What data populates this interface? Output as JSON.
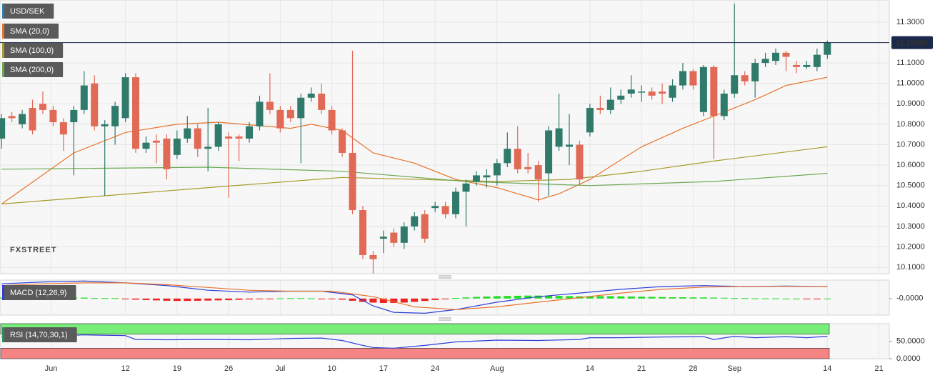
{
  "chart_data": [
    {
      "type": "candlestick",
      "title": "USD/SEK",
      "watermark": "FXSTREET",
      "ylim": [
        10.069,
        11.408
      ],
      "yticks": [
        {
          "value": 10.1,
          "label": "10.1000"
        },
        {
          "value": 10.2,
          "label": "10.2000"
        },
        {
          "value": 10.3,
          "label": "10.3000"
        },
        {
          "value": 10.4,
          "label": "10.4000"
        },
        {
          "value": 10.5,
          "label": "10.5000"
        },
        {
          "value": 10.6,
          "label": "10.6000"
        },
        {
          "value": 10.7,
          "label": "10.7000"
        },
        {
          "value": 10.8,
          "label": "10.8000"
        },
        {
          "value": 10.9,
          "label": "10.9000"
        },
        {
          "value": 11.0,
          "label": "11.0000"
        },
        {
          "value": 11.1,
          "label": "11.1000"
        },
        {
          "value": 11.2,
          "label": "11.2000"
        },
        {
          "value": 11.3,
          "label": "11.3000"
        }
      ],
      "xlim": [
        -0.15,
        86
      ],
      "xticks": [
        {
          "value": 4.8,
          "label": "Jun"
        },
        {
          "value": 12,
          "label": "12"
        },
        {
          "value": 17,
          "label": "19"
        },
        {
          "value": 22,
          "label": "26"
        },
        {
          "value": 27,
          "label": "Jul"
        },
        {
          "value": 32,
          "label": "10"
        },
        {
          "value": 37,
          "label": "17"
        },
        {
          "value": 42,
          "label": "24"
        },
        {
          "value": 48,
          "label": "Aug"
        },
        {
          "value": 57,
          "label": "14"
        },
        {
          "value": 62,
          "label": "21"
        },
        {
          "value": 67,
          "label": "28"
        },
        {
          "value": 71,
          "label": "Sep"
        },
        {
          "value": 80,
          "label": "14"
        },
        {
          "value": 85,
          "label": "21"
        }
      ],
      "grid": true,
      "last_price": {
        "value": 11.19962,
        "label": "11.19962"
      },
      "up_color": "#2f7a6a",
      "down_color": "#e06a55",
      "candles": {
        "open": [
          10.73,
          10.84,
          10.8,
          10.88,
          10.9,
          10.87,
          10.81,
          10.81,
          10.87,
          11.0,
          10.79,
          10.79,
          10.83,
          11.03,
          10.68,
          10.72,
          10.73,
          10.65,
          10.73,
          10.78,
          10.68,
          10.69,
          10.74,
          10.74,
          10.73,
          10.79,
          10.91,
          10.87,
          10.87,
          10.83,
          10.93,
          10.95,
          10.87,
          10.77,
          10.66,
          10.38,
          10.16,
          10.24,
          10.27,
          10.22,
          10.3,
          10.36,
          10.39,
          10.4,
          10.36,
          10.47,
          10.52,
          10.54,
          10.55,
          10.61,
          10.68,
          10.59,
          10.6,
          10.56,
          10.69,
          10.69,
          10.7,
          10.76,
          10.88,
          10.87,
          10.92,
          10.95,
          10.96,
          10.96,
          10.96,
          10.93,
          10.99,
          11.06,
          10.86,
          11.08,
          10.84,
          10.95,
          11.04,
          11.01,
          11.1,
          11.11,
          11.15,
          11.09,
          11.08,
          11.08,
          11.14
        ],
        "high": [
          10.85,
          10.86,
          10.87,
          10.92,
          10.96,
          10.89,
          10.83,
          10.89,
          11.06,
          11.04,
          10.82,
          10.91,
          11.05,
          11.05,
          10.74,
          10.75,
          10.75,
          10.77,
          10.84,
          10.8,
          10.88,
          10.81,
          10.76,
          10.75,
          10.81,
          10.94,
          11.05,
          10.89,
          10.89,
          10.95,
          10.98,
          11.0,
          10.89,
          10.78,
          11.16,
          10.4,
          10.18,
          10.28,
          10.29,
          10.32,
          10.37,
          10.38,
          10.42,
          10.42,
          10.49,
          10.53,
          10.57,
          10.58,
          10.63,
          10.76,
          10.79,
          10.66,
          10.62,
          10.79,
          10.95,
          10.85,
          10.72,
          10.9,
          10.94,
          10.98,
          10.97,
          11.04,
          10.99,
          10.98,
          11.0,
          11.02,
          11.1,
          11.07,
          11.09,
          11.09,
          10.97,
          11.39,
          11.06,
          11.12,
          11.15,
          11.17,
          11.16,
          11.11,
          11.11,
          11.17,
          11.21
        ],
        "low": [
          10.68,
          10.81,
          10.78,
          10.75,
          10.85,
          10.79,
          10.67,
          10.55,
          10.85,
          10.77,
          10.45,
          10.7,
          10.81,
          10.66,
          10.66,
          10.61,
          10.53,
          10.63,
          10.71,
          10.64,
          10.57,
          10.67,
          10.44,
          10.62,
          10.71,
          10.77,
          10.85,
          10.76,
          10.81,
          10.61,
          10.91,
          10.85,
          10.75,
          10.64,
          10.36,
          10.14,
          10.07,
          10.17,
          10.2,
          10.19,
          10.28,
          10.22,
          10.37,
          10.34,
          10.34,
          10.3,
          10.5,
          10.49,
          10.5,
          10.59,
          10.56,
          10.56,
          10.42,
          10.45,
          10.67,
          10.6,
          10.5,
          10.74,
          10.85,
          10.85,
          10.9,
          10.93,
          10.91,
          10.92,
          10.9,
          10.91,
          10.97,
          10.97,
          10.84,
          10.63,
          10.82,
          10.93,
          10.99,
          10.93,
          11.08,
          11.09,
          11.06,
          11.05,
          11.07,
          11.06,
          11.12
        ],
        "close": [
          10.83,
          10.83,
          10.85,
          10.77,
          10.87,
          10.81,
          10.75,
          10.87,
          10.99,
          10.79,
          10.8,
          10.89,
          11.03,
          10.68,
          10.71,
          10.71,
          10.58,
          10.73,
          10.78,
          10.68,
          10.69,
          10.8,
          10.73,
          10.73,
          10.79,
          10.91,
          10.87,
          10.78,
          10.83,
          10.93,
          10.95,
          10.87,
          10.77,
          10.66,
          10.38,
          10.16,
          10.14,
          10.25,
          10.22,
          10.3,
          10.35,
          10.24,
          10.4,
          10.36,
          10.47,
          10.51,
          10.55,
          10.55,
          10.61,
          10.68,
          10.58,
          10.58,
          10.53,
          10.77,
          10.78,
          10.7,
          10.53,
          10.88,
          10.87,
          10.92,
          10.94,
          10.97,
          10.96,
          10.94,
          10.95,
          10.99,
          11.06,
          10.99,
          11.08,
          10.84,
          10.95,
          11.04,
          11.01,
          11.1,
          11.12,
          11.15,
          11.13,
          11.08,
          11.09,
          11.14,
          11.19962
        ]
      },
      "series": [
        {
          "name": "SMA (20,0)",
          "color": "#e8732a",
          "x": [
            0,
            7,
            12,
            17,
            21,
            28,
            30,
            33,
            36,
            40,
            44,
            48,
            52,
            54,
            57,
            62,
            66,
            69,
            73,
            76,
            80
          ],
          "values": [
            10.41,
            10.66,
            10.76,
            10.8,
            10.81,
            10.78,
            10.8,
            10.77,
            10.66,
            10.61,
            10.53,
            10.49,
            10.43,
            10.46,
            10.53,
            10.69,
            10.78,
            10.84,
            10.92,
            10.99,
            11.03
          ]
        },
        {
          "name": "SMA (100,0)",
          "color": "#a89a2a",
          "x": [
            0,
            10,
            20,
            33,
            48,
            55,
            62,
            69,
            80
          ],
          "values": [
            10.41,
            10.45,
            10.49,
            10.54,
            10.52,
            10.53,
            10.57,
            10.62,
            10.69
          ]
        },
        {
          "name": "SMA (200,0)",
          "color": "#6aa84f",
          "x": [
            0,
            20,
            33,
            45,
            57,
            69,
            80
          ],
          "values": [
            10.58,
            10.59,
            10.57,
            10.52,
            10.5,
            10.52,
            10.56
          ]
        }
      ]
    },
    {
      "type": "macd",
      "title": "MACD (12,26,9)",
      "ylim": [
        -0.09,
        0.1
      ],
      "yticks": [
        {
          "value": 0,
          "label": "-0.0000"
        }
      ],
      "series": [
        {
          "color": "#2b3fd6",
          "x": [
            0,
            4,
            8,
            12,
            16,
            20,
            24,
            28,
            31,
            34,
            36,
            38,
            41,
            44,
            48,
            52,
            56,
            60,
            64,
            68,
            72,
            76,
            80
          ],
          "values": [
            0.08,
            0.09,
            0.095,
            0.085,
            0.07,
            0.045,
            0.035,
            0.04,
            0.04,
            0.02,
            -0.04,
            -0.075,
            -0.08,
            -0.06,
            -0.02,
            0.01,
            0.03,
            0.05,
            0.065,
            0.07,
            0.065,
            0.068,
            0.065
          ]
        },
        {
          "color": "#e8732a",
          "x": [
            0,
            4,
            8,
            12,
            16,
            20,
            24,
            28,
            32,
            36,
            40,
            44,
            48,
            52,
            56,
            60,
            64,
            68,
            72,
            76,
            80
          ],
          "values": [
            0.07,
            0.08,
            0.085,
            0.085,
            0.075,
            0.06,
            0.045,
            0.04,
            0.04,
            0.01,
            -0.045,
            -0.06,
            -0.045,
            -0.02,
            0.005,
            0.03,
            0.05,
            0.062,
            0.066,
            0.066,
            0.065
          ]
        }
      ],
      "histogram": {
        "up_color": "#22dd22",
        "down_color": "#ee2222",
        "values": [
          0.005,
          0.005,
          0.005,
          0.005,
          0.005,
          0.005,
          0.005,
          0.005,
          0.005,
          0.002,
          0.002,
          0.002,
          -0.004,
          -0.006,
          -0.008,
          -0.01,
          -0.012,
          -0.013,
          -0.013,
          -0.012,
          -0.011,
          -0.01,
          -0.009,
          -0.007,
          -0.005,
          -0.002,
          -0.001,
          0.001,
          0.002,
          0.002,
          0.001,
          -0.001,
          -0.002,
          -0.006,
          -0.012,
          -0.018,
          -0.022,
          -0.024,
          -0.024,
          -0.022,
          -0.018,
          -0.013,
          -0.008,
          -0.004,
          0.003,
          0.006,
          0.009,
          0.011,
          0.013,
          0.014,
          0.015,
          0.016,
          0.016,
          0.015,
          0.014,
          0.013,
          0.012,
          0.012,
          0.013,
          0.013,
          0.012,
          0.011,
          0.01,
          0.009,
          0.008,
          0.007,
          0.007,
          0.006,
          0.006,
          0.005,
          0.004,
          0.002,
          0.002,
          0.001,
          0.001,
          0.001,
          0,
          0,
          -0.001,
          -0.001,
          0
        ]
      }
    },
    {
      "type": "rsi",
      "title": "RSI (14,70,30,1)",
      "ylim": [
        0,
        100
      ],
      "yticks": [
        {
          "value": 50,
          "label": "50.0000"
        },
        {
          "value": 0,
          "label": "0.0000"
        }
      ],
      "bands": [
        {
          "from": 70,
          "to": 100,
          "color": "#77ee77"
        },
        {
          "from": 0,
          "to": 30,
          "color": "#f58585"
        }
      ],
      "series": [
        {
          "color": "#2b3fd6",
          "x": [
            0,
            4,
            8,
            12,
            13,
            16,
            20,
            24,
            28,
            31,
            33,
            35,
            36,
            38,
            41,
            44,
            48,
            52,
            56,
            57,
            60,
            64,
            68,
            69,
            71,
            73,
            76,
            78,
            80
          ],
          "values": [
            62,
            64,
            68,
            66,
            55,
            54,
            55,
            54,
            58,
            59,
            52,
            38,
            32,
            30,
            38,
            48,
            53,
            52,
            55,
            60,
            60,
            62,
            63,
            55,
            64,
            60,
            63,
            60,
            64
          ]
        }
      ]
    }
  ]
}
